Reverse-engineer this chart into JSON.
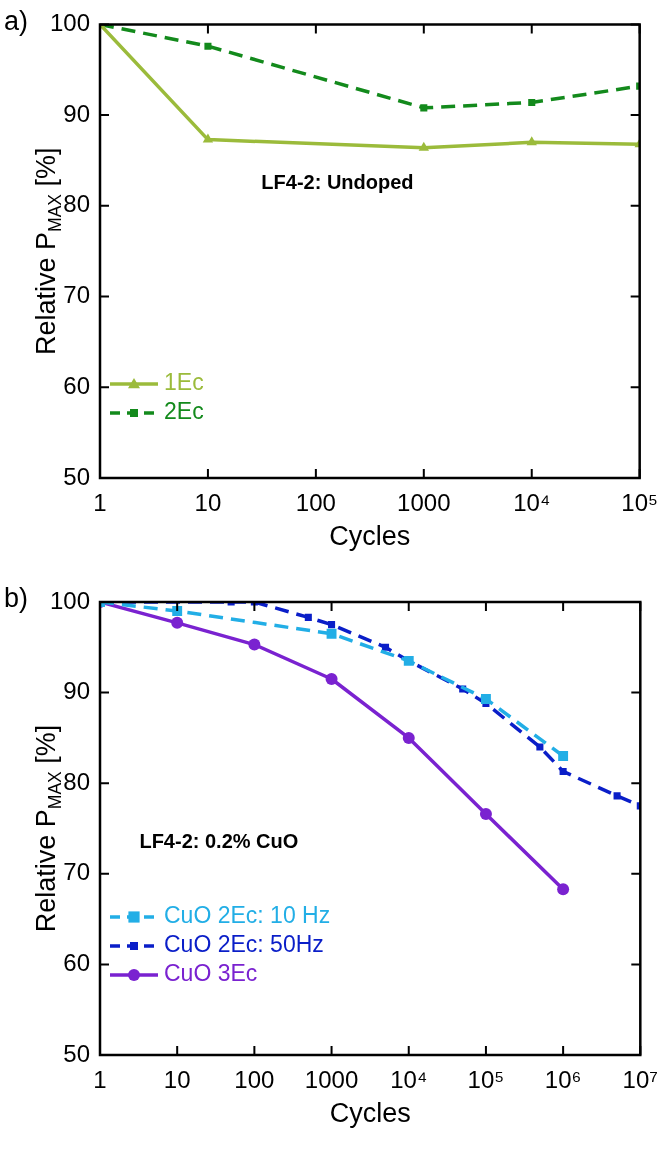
{
  "chart_data": [
    {
      "type": "line",
      "ylabel": "Relative P$_{MAX}$ [%]",
      "xlabel": "Cycles",
      "log": "x",
      "xlim": [
        1,
        100000
      ],
      "xticks": [
        1,
        10,
        100,
        1000,
        {
          "value": 10000,
          "label": "10⁴"
        },
        {
          "value": 100000,
          "label": "10⁵"
        }
      ],
      "ylim": [
        50,
        100
      ],
      "yticks": [
        50,
        60,
        70,
        80,
        90,
        100
      ],
      "grid": false,
      "legend": "bottom left",
      "annotations": [
        "a)",
        "LF4-2: Undoped"
      ],
      "series": [
        {
          "name": "1Ec",
          "color": "#9bbb3b",
          "marker": "triangle",
          "line_style": "solid",
          "x": [
            1,
            10,
            1000,
            10000,
            100000
          ],
          "values": [
            100,
            87.3,
            86.4,
            87,
            86.8
          ]
        },
        {
          "name": "2Ec",
          "color": "#138a1c",
          "marker": "square",
          "line_style": "dashed",
          "x": [
            1,
            10,
            1000,
            10000,
            100000
          ],
          "values": [
            100,
            97.6,
            90.8,
            91.4,
            93.2
          ]
        }
      ]
    },
    {
      "type": "line",
      "ylabel": "Relative P$_{MAX}$ [%]",
      "xlabel": "Cycles",
      "log": "x",
      "xlim": [
        1,
        10000000
      ],
      "xticks": [
        1,
        10,
        100,
        1000,
        {
          "value": 10000,
          "label": "10⁴"
        },
        {
          "value": 100000,
          "label": "10⁵"
        },
        {
          "value": 1000000,
          "label": "10⁶"
        },
        {
          "value": 10000000,
          "label": "10⁷"
        }
      ],
      "ylim": [
        50,
        100
      ],
      "yticks": [
        50,
        60,
        70,
        80,
        90,
        100
      ],
      "grid": false,
      "legend": "bottom left",
      "annotations": [
        "b)",
        "LF4-2: 0.2% CuO"
      ],
      "series": [
        {
          "name": "CuO 2Ec: 10 Hz",
          "color": "#22aee6",
          "marker": "square",
          "line_style": "dashed",
          "x": [
            1,
            10,
            1000,
            10000,
            100000,
            1000000
          ],
          "values": [
            100,
            99,
            96.5,
            93.5,
            89.3,
            83
          ]
        },
        {
          "name": "CuO 2Ec: 50Hz",
          "color": "#0a1ec8",
          "marker": "square",
          "line_style": "dashed",
          "x": [
            1,
            50,
            100,
            500,
            1000,
            5000,
            10000,
            50000,
            100000,
            500000,
            1000000,
            5000000,
            10000000
          ],
          "values": [
            100,
            100,
            100,
            98.3,
            97.5,
            95,
            93.5,
            90.4,
            88.8,
            84,
            81.3,
            78.6,
            77.5
          ]
        },
        {
          "name": "CuO 3Ec",
          "color": "#7a22d0",
          "marker": "circle",
          "line_style": "solid",
          "x": [
            1,
            10,
            100,
            1000,
            10000,
            100000,
            1000000
          ],
          "values": [
            100,
            97.7,
            95.3,
            91.5,
            85,
            76.6,
            68.3
          ]
        }
      ]
    }
  ]
}
